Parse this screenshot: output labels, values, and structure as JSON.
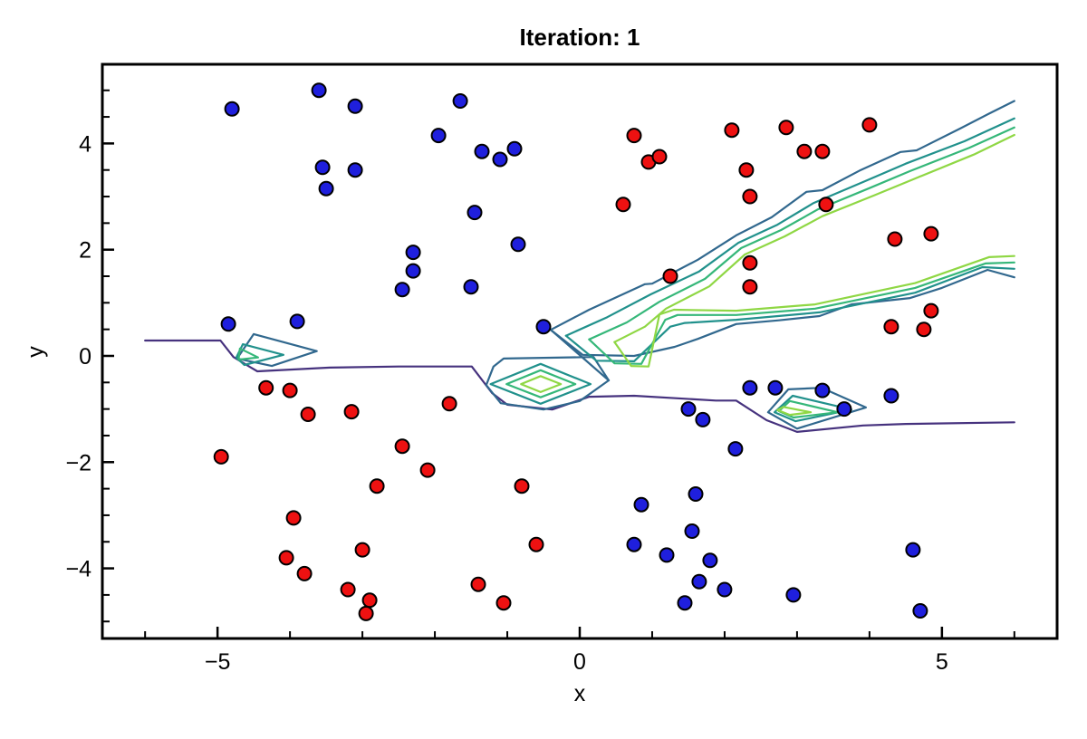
{
  "chart_data": {
    "type": "scatter",
    "title": "Iteration: 1",
    "xlabel": "x",
    "ylabel": "y",
    "xlim": [
      -6.59,
      6.59
    ],
    "ylim": [
      -5.32,
      5.49
    ],
    "grid": false,
    "legend": "none",
    "xticks": [
      {
        "v": -5,
        "label": "−5"
      },
      {
        "v": 0,
        "label": "0"
      },
      {
        "v": 5,
        "label": "5"
      }
    ],
    "xticks_minor": [
      -6,
      -4,
      -3,
      -2,
      -1,
      1,
      2,
      3,
      4,
      6
    ],
    "yticks": [
      {
        "v": -4,
        "label": "−4"
      },
      {
        "v": -2,
        "label": "−2"
      },
      {
        "v": 0,
        "label": "0"
      },
      {
        "v": 2,
        "label": "2"
      },
      {
        "v": 4,
        "label": "4"
      }
    ],
    "yticks_minor": [
      -5,
      -4.5,
      -3.5,
      -3,
      -2.5,
      -1.5,
      -1,
      -0.5,
      0.5,
      1,
      1.5,
      2.5,
      3,
      3.5,
      4.5,
      5
    ],
    "colors": {
      "red_points": "#ee1111",
      "blue_points": "#1f1fdd",
      "point_outline": "#000000",
      "frame": "#000000",
      "contour_levels": {
        "purple": "#46327e",
        "blue": "#31688e",
        "teal": "#21918c",
        "green": "#35b779",
        "lightgreen": "#8fd744"
      }
    },
    "series": [
      {
        "name": "class-red",
        "color_key": "red_points",
        "points": [
          [
            0.75,
            4.15
          ],
          [
            0.95,
            3.65
          ],
          [
            1.1,
            3.75
          ],
          [
            0.6,
            2.85
          ],
          [
            2.1,
            4.25
          ],
          [
            2.85,
            4.3
          ],
          [
            4.0,
            4.35
          ],
          [
            3.1,
            3.85
          ],
          [
            3.35,
            3.85
          ],
          [
            2.3,
            3.5
          ],
          [
            2.35,
            3.0
          ],
          [
            3.4,
            2.85
          ],
          [
            4.35,
            2.2
          ],
          [
            4.85,
            2.3
          ],
          [
            1.25,
            1.5
          ],
          [
            2.35,
            1.75
          ],
          [
            2.35,
            1.3
          ],
          [
            4.85,
            0.85
          ],
          [
            4.3,
            0.55
          ],
          [
            4.75,
            0.5
          ],
          [
            -4.33,
            -0.6
          ],
          [
            -4.0,
            -0.65
          ],
          [
            -3.75,
            -1.1
          ],
          [
            -3.15,
            -1.05
          ],
          [
            -1.8,
            -0.9
          ],
          [
            -4.95,
            -1.9
          ],
          [
            -2.45,
            -1.7
          ],
          [
            -2.8,
            -2.45
          ],
          [
            -3.95,
            -3.05
          ],
          [
            -2.1,
            -2.15
          ],
          [
            -0.8,
            -2.45
          ],
          [
            -0.6,
            -3.55
          ],
          [
            -4.05,
            -3.8
          ],
          [
            -3.8,
            -4.1
          ],
          [
            -3.0,
            -3.65
          ],
          [
            -3.2,
            -4.4
          ],
          [
            -2.9,
            -4.6
          ],
          [
            -2.95,
            -4.85
          ],
          [
            -1.4,
            -4.3
          ],
          [
            -1.05,
            -4.65
          ]
        ]
      },
      {
        "name": "class-blue",
        "color_key": "blue_points",
        "points": [
          [
            -4.8,
            4.65
          ],
          [
            -3.6,
            5.0
          ],
          [
            -3.1,
            4.7
          ],
          [
            -3.55,
            3.55
          ],
          [
            -3.1,
            3.5
          ],
          [
            -3.5,
            3.15
          ],
          [
            -1.65,
            4.8
          ],
          [
            -1.95,
            4.15
          ],
          [
            -1.35,
            3.85
          ],
          [
            -1.1,
            3.7
          ],
          [
            -0.9,
            3.9
          ],
          [
            -1.45,
            2.7
          ],
          [
            -0.85,
            2.1
          ],
          [
            -2.3,
            1.95
          ],
          [
            -2.3,
            1.6
          ],
          [
            -2.45,
            1.25
          ],
          [
            -1.5,
            1.3
          ],
          [
            -4.85,
            0.6
          ],
          [
            -3.9,
            0.65
          ],
          [
            -0.5,
            0.55
          ],
          [
            2.35,
            -0.6
          ],
          [
            2.7,
            -0.6
          ],
          [
            3.35,
            -0.65
          ],
          [
            3.65,
            -1.0
          ],
          [
            4.3,
            -0.75
          ],
          [
            1.5,
            -1.0
          ],
          [
            1.7,
            -1.2
          ],
          [
            2.15,
            -1.75
          ],
          [
            0.85,
            -2.8
          ],
          [
            1.6,
            -2.6
          ],
          [
            1.55,
            -3.3
          ],
          [
            0.75,
            -3.55
          ],
          [
            1.2,
            -3.75
          ],
          [
            1.8,
            -3.85
          ],
          [
            1.65,
            -4.25
          ],
          [
            2.0,
            -4.4
          ],
          [
            1.45,
            -4.65
          ],
          [
            4.6,
            -3.65
          ],
          [
            2.95,
            -4.5
          ],
          [
            4.7,
            -4.8
          ]
        ]
      }
    ],
    "contours": [
      {
        "color": "purple",
        "closed": false,
        "pts": [
          [
            -6.0,
            0.29
          ],
          [
            -4.96,
            0.29
          ],
          [
            -4.78,
            -0.02
          ],
          [
            -4.55,
            -0.21
          ],
          [
            -4.45,
            -0.29
          ],
          [
            -3.45,
            -0.22
          ],
          [
            -2.5,
            -0.2
          ],
          [
            -1.49,
            -0.2
          ],
          [
            -1.21,
            -0.7
          ],
          [
            -1.0,
            -0.92
          ],
          [
            -0.38,
            -1.01
          ],
          [
            0.13,
            -0.77
          ],
          [
            0.75,
            -0.75
          ],
          [
            1.88,
            -0.84
          ],
          [
            2.16,
            -0.84
          ],
          [
            2.58,
            -1.21
          ],
          [
            3.0,
            -1.43
          ],
          [
            3.91,
            -1.31
          ],
          [
            4.5,
            -1.28
          ],
          [
            6.0,
            -1.25
          ]
        ]
      },
      {
        "color": "blue",
        "closed": false,
        "pts": [
          [
            -0.4,
            0.49
          ],
          [
            0.13,
            0.87
          ],
          [
            0.9,
            1.35
          ],
          [
            1.0,
            1.36
          ],
          [
            1.63,
            1.81
          ],
          [
            2.16,
            2.27
          ],
          [
            2.65,
            2.61
          ],
          [
            3.13,
            3.09
          ],
          [
            3.35,
            3.12
          ],
          [
            3.88,
            3.5
          ],
          [
            4.43,
            3.84
          ],
          [
            4.65,
            3.87
          ],
          [
            5.25,
            4.28
          ],
          [
            5.65,
            4.56
          ],
          [
            6.0,
            4.8
          ]
        ]
      },
      {
        "color": "blue",
        "closed": false,
        "pts": [
          [
            -0.4,
            0.49
          ],
          [
            0.04,
            0.02
          ],
          [
            0.75,
            0.0
          ],
          [
            1.31,
            0.17
          ],
          [
            1.63,
            0.32
          ],
          [
            2.16,
            0.6
          ],
          [
            2.75,
            0.67
          ],
          [
            3.31,
            0.75
          ],
          [
            3.75,
            0.97
          ],
          [
            4.56,
            1.09
          ],
          [
            5.0,
            1.28
          ],
          [
            5.63,
            1.62
          ],
          [
            6.0,
            1.48
          ]
        ]
      },
      {
        "color": "blue",
        "closed": false,
        "pts": [
          [
            -0.4,
            0.49
          ],
          [
            0.4,
            -0.46
          ]
        ]
      },
      {
        "color": "blue",
        "closed": true,
        "pts": [
          [
            -4.73,
            -0.05
          ],
          [
            -4.5,
            0.41
          ],
          [
            -3.63,
            0.09
          ],
          [
            -4.25,
            -0.19
          ]
        ]
      },
      {
        "color": "blue",
        "closed": true,
        "pts": [
          [
            -1.05,
            -0.05
          ],
          [
            0.19,
            -0.02
          ],
          [
            0.4,
            -0.46
          ],
          [
            0.0,
            -0.85
          ],
          [
            -0.5,
            -1.01
          ],
          [
            -1.09,
            -0.89
          ],
          [
            -1.29,
            -0.55
          ],
          [
            -1.19,
            -0.2
          ]
        ]
      },
      {
        "color": "blue",
        "closed": true,
        "pts": [
          [
            2.6,
            -1.06
          ],
          [
            2.88,
            -0.63
          ],
          [
            3.34,
            -0.6
          ],
          [
            3.95,
            -0.97
          ],
          [
            3.0,
            -1.37
          ]
        ]
      },
      {
        "color": "teal",
        "closed": false,
        "pts": [
          [
            -0.19,
            0.38
          ],
          [
            0.38,
            0.73
          ],
          [
            0.98,
            1.16
          ],
          [
            1.65,
            1.59
          ],
          [
            2.19,
            2.13
          ],
          [
            2.73,
            2.47
          ],
          [
            3.23,
            2.88
          ],
          [
            3.94,
            3.29
          ],
          [
            4.5,
            3.62
          ],
          [
            5.31,
            4.04
          ],
          [
            6.0,
            4.47
          ]
        ]
      },
      {
        "color": "teal",
        "closed": false,
        "pts": [
          [
            -0.19,
            0.38
          ],
          [
            0.23,
            -0.09
          ],
          [
            0.75,
            -0.1
          ],
          [
            1.25,
            0.55
          ],
          [
            1.45,
            0.62
          ],
          [
            2.16,
            0.68
          ],
          [
            3.31,
            0.82
          ],
          [
            4.63,
            1.19
          ],
          [
            5.56,
            1.67
          ],
          [
            6.0,
            1.64
          ]
        ]
      },
      {
        "color": "teal",
        "closed": true,
        "pts": [
          [
            -4.74,
            -0.03
          ],
          [
            -4.65,
            0.22
          ],
          [
            -4.09,
            0.02
          ],
          [
            -4.63,
            -0.17
          ]
        ]
      },
      {
        "color": "teal",
        "closed": true,
        "pts": [
          [
            -1.23,
            -0.53
          ],
          [
            -0.54,
            -0.15
          ],
          [
            0.15,
            -0.53
          ],
          [
            -0.54,
            -0.9
          ]
        ]
      },
      {
        "color": "teal",
        "closed": true,
        "pts": [
          [
            2.69,
            -1.06
          ],
          [
            2.94,
            -0.75
          ],
          [
            3.75,
            -1.01
          ],
          [
            2.98,
            -1.23
          ]
        ]
      },
      {
        "color": "green",
        "closed": false,
        "pts": [
          [
            0.13,
            0.31
          ],
          [
            0.65,
            0.63
          ],
          [
            1.1,
            1.02
          ],
          [
            1.73,
            1.45
          ],
          [
            2.23,
            2.03
          ],
          [
            2.78,
            2.37
          ],
          [
            3.29,
            2.76
          ],
          [
            4.0,
            3.16
          ],
          [
            4.56,
            3.48
          ],
          [
            5.38,
            3.92
          ],
          [
            6.0,
            4.3
          ]
        ]
      },
      {
        "color": "green",
        "closed": false,
        "pts": [
          [
            0.13,
            0.31
          ],
          [
            0.48,
            -0.14
          ],
          [
            0.85,
            -0.15
          ],
          [
            1.18,
            0.68
          ],
          [
            1.35,
            0.77
          ],
          [
            2.16,
            0.77
          ],
          [
            3.25,
            0.89
          ],
          [
            4.63,
            1.28
          ],
          [
            5.6,
            1.74
          ],
          [
            6.0,
            1.76
          ]
        ]
      },
      {
        "color": "green",
        "closed": true,
        "pts": [
          [
            -4.71,
            -0.07
          ],
          [
            -4.69,
            0.14
          ],
          [
            -4.44,
            -0.03
          ]
        ]
      },
      {
        "color": "green",
        "closed": true,
        "pts": [
          [
            -1.01,
            -0.53
          ],
          [
            -0.54,
            -0.27
          ],
          [
            -0.06,
            -0.53
          ],
          [
            -0.54,
            -0.78
          ]
        ]
      },
      {
        "color": "green",
        "closed": true,
        "pts": [
          [
            2.75,
            -1.04
          ],
          [
            2.9,
            -0.85
          ],
          [
            3.56,
            -1.06
          ],
          [
            2.95,
            -1.16
          ]
        ]
      },
      {
        "color": "lightgreen",
        "closed": false,
        "pts": [
          [
            0.48,
            0.26
          ],
          [
            0.9,
            0.55
          ],
          [
            1.19,
            0.89
          ],
          [
            1.79,
            1.31
          ],
          [
            2.28,
            1.91
          ],
          [
            2.83,
            2.25
          ],
          [
            3.35,
            2.63
          ],
          [
            4.06,
            3.02
          ],
          [
            4.63,
            3.34
          ],
          [
            5.44,
            3.79
          ],
          [
            6.0,
            4.16
          ]
        ]
      },
      {
        "color": "lightgreen",
        "closed": false,
        "pts": [
          [
            0.48,
            0.26
          ],
          [
            0.71,
            -0.19
          ],
          [
            0.95,
            -0.2
          ],
          [
            1.1,
            0.78
          ],
          [
            1.3,
            0.87
          ],
          [
            2.16,
            0.85
          ],
          [
            3.25,
            0.97
          ],
          [
            4.63,
            1.37
          ],
          [
            5.65,
            1.86
          ],
          [
            6.0,
            1.88
          ]
        ]
      },
      {
        "color": "lightgreen",
        "closed": true,
        "pts": [
          [
            -0.81,
            -0.53
          ],
          [
            -0.54,
            -0.38
          ],
          [
            -0.26,
            -0.53
          ],
          [
            -0.54,
            -0.68
          ]
        ]
      },
      {
        "color": "lightgreen",
        "closed": true,
        "pts": [
          [
            2.73,
            -1.02
          ],
          [
            2.81,
            -0.96
          ],
          [
            3.19,
            -1.06
          ],
          [
            2.9,
            -1.11
          ]
        ]
      }
    ]
  }
}
